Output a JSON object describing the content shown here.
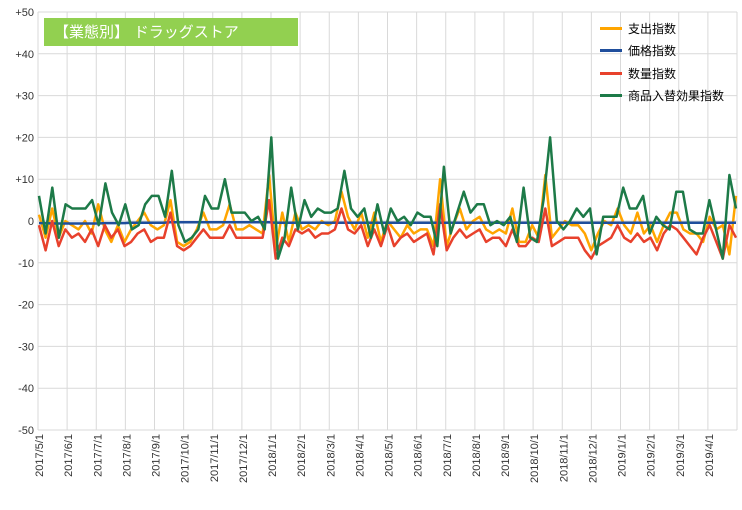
{
  "chart_data": {
    "type": "line",
    "title": "【業態別】 ドラッグストア",
    "xlabel": "",
    "ylabel": "",
    "ylim": [
      -50,
      50
    ],
    "y_ticks": [
      "+50",
      "+40",
      "+30",
      "+20",
      "+10",
      "0",
      "-10",
      "-20",
      "-30",
      "-40",
      "-50"
    ],
    "x_tick_labels": [
      "2017/5/1",
      "2017/6/1",
      "2017/7/1",
      "2017/8/1",
      "2017/9/1",
      "2017/10/1",
      "2017/11/1",
      "2017/12/1",
      "2018/1/1",
      "2018/2/1",
      "2018/3/1",
      "2018/4/1",
      "2018/5/1",
      "2018/6/1",
      "2018/7/1",
      "2018/8/1",
      "2018/9/1",
      "2018/10/1",
      "2018/11/1",
      "2018/12/1",
      "2019/1/1",
      "2019/2/1",
      "2019/3/1",
      "2019/4/1"
    ],
    "grid": true,
    "legend_position": "top-right",
    "series": [
      {
        "name": "支出指数",
        "color": "#ffa500",
        "values": [
          1.5,
          -4,
          3,
          -4,
          0,
          -1,
          -2,
          0,
          -3,
          4,
          -2,
          -5,
          -1,
          -5,
          -2,
          0,
          2,
          -1,
          -2,
          -1,
          5,
          -5,
          -6,
          -5,
          -2,
          2,
          -2,
          -2,
          -1,
          4,
          -2,
          -2,
          -1,
          -2,
          -3,
          11,
          -7,
          2,
          -5,
          2,
          -2,
          -1,
          -2,
          0,
          -1,
          0,
          7,
          1,
          -2,
          2,
          -4,
          2,
          -5,
          0,
          -2,
          -4,
          -1,
          -3,
          -2,
          -2,
          -6,
          10,
          -6,
          -1,
          3,
          -2,
          0,
          1,
          -2,
          -3,
          -2,
          -3,
          3,
          -5,
          -5,
          -1,
          -4,
          11,
          -4,
          -2,
          0,
          -1,
          -1,
          -3,
          -7,
          -3,
          0,
          -1,
          3,
          -1,
          -3,
          2,
          -3,
          -1,
          -5,
          -1,
          2,
          2,
          -2,
          -3,
          -3,
          -5,
          1,
          -2,
          -1,
          -8,
          6
        ]
      },
      {
        "name": "価格指数",
        "color": "#1f4e9c",
        "values": [
          -0.5,
          -0.5,
          -0.6,
          -0.6,
          -0.6,
          -0.6,
          -0.6,
          -0.6,
          -0.6,
          -0.6,
          -0.5,
          -0.5,
          -0.5,
          -0.5,
          -0.4,
          -0.4,
          -0.4,
          -0.4,
          -0.4,
          -0.4,
          -0.3,
          -0.3,
          -0.3,
          -0.3,
          -0.3,
          -0.3,
          -0.3,
          -0.3,
          -0.3,
          -0.3,
          -0.3,
          -0.3,
          -0.3,
          -0.3,
          -0.3,
          -0.3,
          -0.4,
          -0.4,
          -0.4,
          -0.4,
          -0.4,
          -0.4,
          -0.4,
          -0.4,
          -0.4,
          -0.4,
          -0.4,
          -0.4,
          -0.4,
          -0.4,
          -0.4,
          -0.4,
          -0.4,
          -0.4,
          -0.4,
          -0.4,
          -0.4,
          -0.4,
          -0.4,
          -0.4,
          -0.4,
          -0.4,
          -0.4,
          -0.4,
          -0.4,
          -0.4,
          -0.4,
          -0.4,
          -0.4,
          -0.4,
          -0.4,
          -0.4,
          -0.4,
          -0.4,
          -0.4,
          -0.4,
          -0.4,
          -0.4,
          -0.4,
          -0.4,
          -0.4,
          -0.4,
          -0.4,
          -0.4,
          -0.4,
          -0.4,
          -0.4,
          -0.4,
          -0.4,
          -0.4,
          -0.4,
          -0.4,
          -0.4,
          -0.4,
          -0.4,
          -0.4,
          -0.4,
          -0.4,
          -0.4,
          -0.4,
          -0.4,
          -0.4,
          -0.4,
          -0.4,
          -0.4,
          -0.4,
          -0.4
        ]
      },
      {
        "name": "数量指数",
        "color": "#e8412c",
        "values": [
          -1,
          -7,
          0,
          -6,
          -2,
          -4,
          -3,
          -5,
          -2,
          -6,
          -1,
          -4,
          -2,
          -6,
          -5,
          -3,
          -2,
          -5,
          -4,
          -4,
          2,
          -6,
          -7,
          -6,
          -4,
          -2,
          -4,
          -4,
          -4,
          -1,
          -4,
          -4,
          -4,
          -4,
          -4,
          5,
          -9,
          -4,
          -6,
          -2,
          -3,
          -2,
          -4,
          -3,
          -3,
          -2,
          3,
          -2,
          -3,
          -1,
          -6,
          -2,
          -6,
          -1,
          -6,
          -4,
          -3,
          -5,
          -4,
          -3,
          -8,
          4,
          -7,
          -4,
          -2,
          -4,
          -3,
          -2,
          -5,
          -4,
          -4,
          -6,
          -2,
          -6,
          -6,
          -4,
          -5,
          3,
          -6,
          -5,
          -4,
          -4,
          -4,
          -7,
          -9,
          -6,
          -5,
          -4,
          -1,
          -4,
          -5,
          -3,
          -5,
          -4,
          -7,
          -3,
          -1,
          -2,
          -4,
          -6,
          -8,
          -4,
          -1,
          -5,
          -9,
          -1,
          -4
        ]
      },
      {
        "name": "商品入替効果指数",
        "color": "#1d7a48",
        "values": [
          6,
          -3,
          8,
          -4,
          4,
          3,
          3,
          3,
          5,
          -1,
          9,
          2,
          -1,
          4,
          -2,
          -1,
          4,
          6,
          6,
          1,
          12,
          -1,
          -5,
          -4,
          -2,
          6,
          3,
          3,
          10,
          2,
          2,
          2,
          0,
          1,
          -2,
          20,
          -9,
          -4,
          8,
          -2,
          5,
          1,
          3,
          2,
          2,
          3,
          12,
          3,
          1,
          3,
          -4,
          4,
          -3,
          3,
          0,
          1,
          -1,
          2,
          1,
          1,
          -6,
          13,
          -3,
          2,
          7,
          2,
          4,
          4,
          -1,
          0,
          -1,
          1,
          -5,
          8,
          -4,
          -5,
          5,
          20,
          0,
          -2,
          0,
          3,
          1,
          3,
          -8,
          1,
          1,
          1,
          8,
          3,
          3,
          6,
          -3,
          1,
          -1,
          -2,
          7,
          7,
          -2,
          -3,
          -3,
          5,
          -2,
          -9,
          11,
          3
        ]
      }
    ]
  }
}
